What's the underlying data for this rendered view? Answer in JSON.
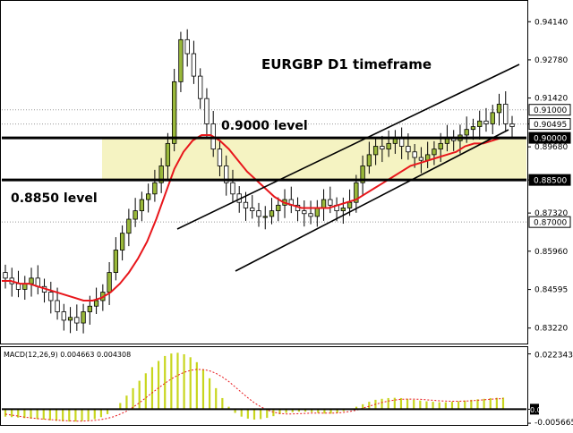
{
  "chart_data": [
    {
      "type": "candlestick",
      "title": "EURGBP D1 timeframe",
      "y_ticks": [
        "0.94140",
        "0.92780",
        "0.91420",
        "0.90495",
        "0.89680",
        "0.88500",
        "0.87320",
        "0.85960",
        "0.84595",
        "0.83220"
      ],
      "price_tags": [
        {
          "label": "0.91000",
          "value": 0.91,
          "filled": false
        },
        {
          "label": "0.90495",
          "value": 0.90495,
          "filled": false
        },
        {
          "label": "0.90000",
          "value": 0.9,
          "filled": true
        },
        {
          "label": "0.88500",
          "value": 0.885,
          "filled": true
        },
        {
          "label": "0.87000",
          "value": 0.87,
          "filled": false
        }
      ],
      "levels": [
        {
          "label": "0.9000 level",
          "value": 0.9
        },
        {
          "label": "0.8850 level",
          "value": 0.885
        }
      ],
      "channel_lines": [
        {
          "from": [
            0,
            0.876
          ],
          "to": [
            1,
            0.928
          ]
        },
        {
          "from": [
            0,
            0.866
          ],
          "to": [
            1,
            0.904
          ]
        }
      ],
      "moving_average_color": "#e8161b",
      "band_color": "#f5f3c2",
      "candle_color": "#99b83a",
      "closes": [
        0.85,
        0.848,
        0.846,
        0.848,
        0.85,
        0.847,
        0.845,
        0.842,
        0.838,
        0.835,
        0.836,
        0.834,
        0.838,
        0.84,
        0.842,
        0.845,
        0.852,
        0.86,
        0.866,
        0.871,
        0.874,
        0.878,
        0.88,
        0.884,
        0.89,
        0.898,
        0.92,
        0.935,
        0.93,
        0.922,
        0.914,
        0.905,
        0.896,
        0.89,
        0.884,
        0.88,
        0.877,
        0.875,
        0.874,
        0.872,
        0.872,
        0.874,
        0.876,
        0.878,
        0.876,
        0.874,
        0.873,
        0.872,
        0.875,
        0.878,
        0.876,
        0.874,
        0.875,
        0.877,
        0.884,
        0.89,
        0.894,
        0.897,
        0.896,
        0.898,
        0.9,
        0.897,
        0.895,
        0.893,
        0.892,
        0.894,
        0.896,
        0.898,
        0.9,
        0.899,
        0.901,
        0.903,
        0.904,
        0.906,
        0.905,
        0.909,
        0.912,
        0.905,
        0.904
      ],
      "ma_values": [
        0.849,
        0.849,
        0.848,
        0.848,
        0.847,
        0.846,
        0.845,
        0.844,
        0.843,
        0.842,
        0.842,
        0.843,
        0.845,
        0.848,
        0.852,
        0.857,
        0.863,
        0.871,
        0.88,
        0.889,
        0.895,
        0.899,
        0.901,
        0.901,
        0.899,
        0.896,
        0.892,
        0.888,
        0.885,
        0.882,
        0.879,
        0.877,
        0.876,
        0.875,
        0.875,
        0.875,
        0.875,
        0.876,
        0.877,
        0.878,
        0.88,
        0.882,
        0.884,
        0.886,
        0.888,
        0.89,
        0.891,
        0.892,
        0.893,
        0.894,
        0.895,
        0.897,
        0.898,
        0.898,
        0.899,
        0.9
      ],
      "ylim": [
        0.827,
        0.9485
      ],
      "legend": "none"
    },
    {
      "type": "bar",
      "title": "MACD(12,26,9) 0.004663 0.004308",
      "y_ticks": [
        "0.022343",
        "0.00",
        "-0.005665"
      ],
      "histogram": [
        -0.003,
        -0.0032,
        -0.0034,
        -0.0036,
        -0.0038,
        -0.004,
        -0.0042,
        -0.0045,
        -0.0047,
        -0.0049,
        -0.005,
        -0.005,
        -0.0048,
        -0.0045,
        -0.004,
        -0.0032,
        -0.002,
        0.0,
        0.0025,
        0.0055,
        0.0085,
        0.0115,
        0.0145,
        0.017,
        0.0195,
        0.0215,
        0.0225,
        0.0228,
        0.0222,
        0.021,
        0.019,
        0.016,
        0.0125,
        0.0085,
        0.0045,
        0.001,
        -0.0015,
        -0.003,
        -0.0038,
        -0.0042,
        -0.004,
        -0.0035,
        -0.0028,
        -0.002,
        -0.0015,
        -0.0012,
        -0.001,
        -0.001,
        -0.0012,
        -0.0015,
        -0.0018,
        -0.0018,
        -0.0015,
        -0.0008,
        0.0,
        0.001,
        0.002,
        0.003,
        0.0038,
        0.0042,
        0.0045,
        0.0046,
        0.0045,
        0.0042,
        0.0038,
        0.0035,
        0.0032,
        0.003,
        0.0028,
        0.0028,
        0.003,
        0.0032,
        0.0035,
        0.0038,
        0.004,
        0.0042,
        0.0045,
        0.0046,
        0.0047
      ],
      "signal": [
        -0.002,
        -0.0024,
        -0.0028,
        -0.0032,
        -0.0035,
        -0.0038,
        -0.004,
        -0.0042,
        -0.0044,
        -0.0046,
        -0.0047,
        -0.0048,
        -0.0048,
        -0.0047,
        -0.0045,
        -0.0042,
        -0.0037,
        -0.003,
        -0.002,
        -0.0008,
        0.0008,
        0.0026,
        0.0046,
        0.0066,
        0.0086,
        0.0105,
        0.0122,
        0.0137,
        0.0149,
        0.0157,
        0.0161,
        0.016,
        0.0155,
        0.0145,
        0.013,
        0.0112,
        0.009,
        0.0068,
        0.0046,
        0.0026,
        0.001,
        -0.0003,
        -0.0012,
        -0.0017,
        -0.0019,
        -0.0019,
        -0.0018,
        -0.0017,
        -0.0016,
        -0.0016,
        -0.0016,
        -0.0016,
        -0.0015,
        -0.0013,
        -0.0009,
        -0.0004,
        0.0004,
        0.0012,
        0.002,
        0.0027,
        0.0033,
        0.0037,
        0.004,
        0.0041,
        0.0041,
        0.004,
        0.0038,
        0.0036,
        0.0034,
        0.0033,
        0.0032,
        0.0032,
        0.0033,
        0.0034,
        0.0036,
        0.0038,
        0.004,
        0.0042,
        0.0043
      ],
      "ylim": [
        -0.006,
        0.024
      ],
      "bar_color": "#c8d61e",
      "signal_color": "#e8161b",
      "legend": "none"
    }
  ]
}
